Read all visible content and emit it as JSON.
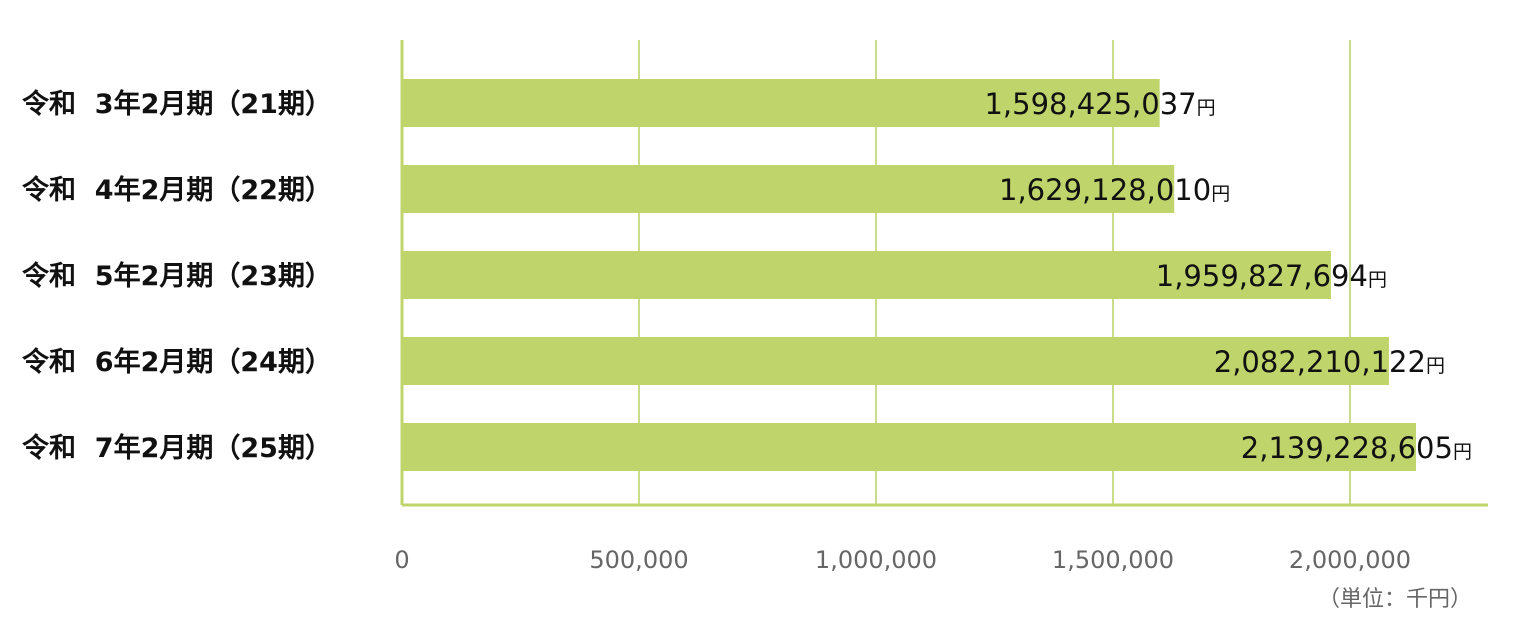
{
  "chart_data": {
    "type": "bar",
    "orientation": "horizontal",
    "categories": [
      "令和  3年2月期（21期）",
      "令和  4年2月期（22期）",
      "令和  5年2月期（23期）",
      "令和  6年2月期（24期）",
      "令和  7年2月期（25期）"
    ],
    "values": [
      1598425037,
      1629128010,
      1959827694,
      2082210122,
      2139228605
    ],
    "value_labels": [
      "1,598,425,037",
      "1,629,128,010",
      "1,959,827,694",
      "2,082,210,122",
      "2,139,228,605"
    ],
    "value_unit": "円",
    "xticks": [
      0,
      500000,
      1000000,
      1500000,
      2000000
    ],
    "xtick_labels": [
      "0",
      "500,000",
      "1,000,000",
      "1,500,000",
      "2,000,000"
    ],
    "xlim": [
      0,
      2300000
    ],
    "unit_note": "（単位：千円）",
    "grid": true,
    "colors": {
      "bar": "#bfd56c",
      "grid": "#c8dc8c",
      "axis": "#bfd56c"
    }
  }
}
